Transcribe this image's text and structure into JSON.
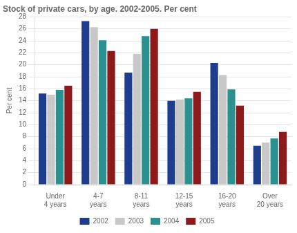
{
  "chart_data": {
    "type": "bar",
    "title": "Stock of private cars, by age. 2002-2005. Per cent",
    "ylabel": "Per cent",
    "categories": [
      "Under\n4 years",
      "4-7\nyears",
      "8-11\nyears",
      "12-15\nyears",
      "16-20\nyears",
      "Over\n20 years"
    ],
    "series": [
      {
        "name": "2002",
        "color": "#1f3d8c",
        "values": [
          15.2,
          27.3,
          18.7,
          14.0,
          20.3,
          6.5
        ]
      },
      {
        "name": "2003",
        "color": "#c8c8c8",
        "values": [
          15.0,
          26.3,
          21.8,
          14.2,
          18.3,
          7.0
        ]
      },
      {
        "name": "2004",
        "color": "#2a9090",
        "values": [
          15.8,
          24.1,
          24.8,
          14.4,
          15.9,
          7.7
        ]
      },
      {
        "name": "2005",
        "color": "#8c1a1a",
        "values": [
          16.5,
          22.3,
          26.0,
          15.5,
          13.2,
          8.8
        ]
      }
    ],
    "ylim": [
      0,
      28
    ],
    "yticks": [
      0,
      2,
      4,
      6,
      8,
      10,
      12,
      14,
      16,
      18,
      20,
      22,
      24,
      26,
      28
    ],
    "grid": true,
    "legend": "bottom"
  }
}
